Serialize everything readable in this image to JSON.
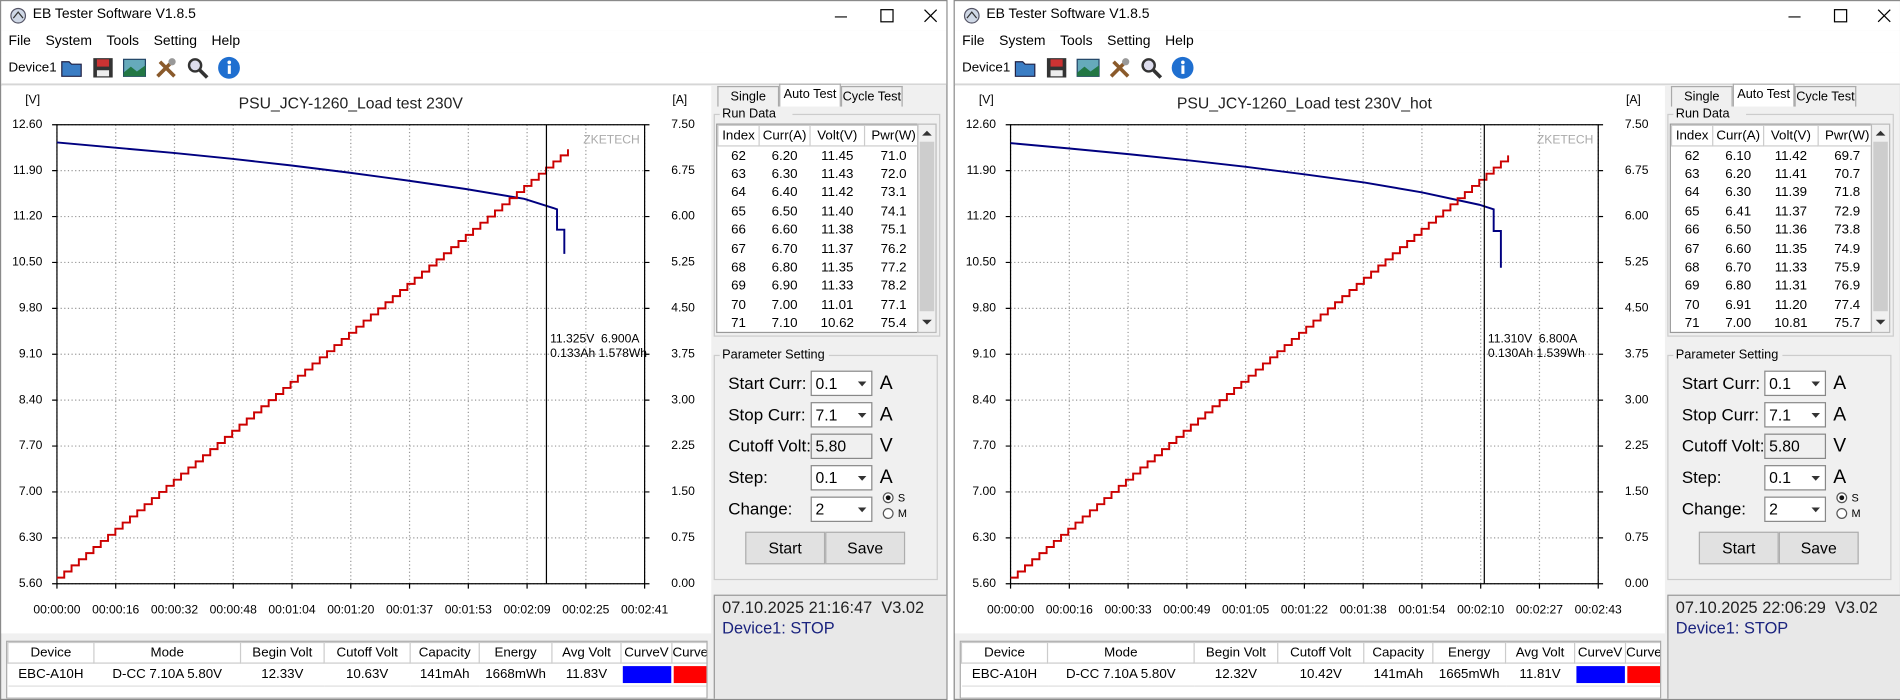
{
  "windows": [
    {
      "title": "EB Tester Software V1.8.5",
      "menu": [
        "File",
        "System",
        "Tools",
        "Setting",
        "Help"
      ],
      "device": "Device1",
      "chart_data": {
        "type": "line",
        "title": "PSU_JCY-1260_Load test 230V",
        "ylabel": "[V]",
        "y2label": "[A]",
        "xlim": [
          0,
          161
        ],
        "xticks": [
          {
            "value": 0,
            "label": "00:00:00"
          },
          {
            "value": 16.1,
            "label": "00:00:16"
          },
          {
            "value": 32.2,
            "label": "00:00:32"
          },
          {
            "value": 48.3,
            "label": "00:00:48"
          },
          {
            "value": 64.4,
            "label": "00:01:04"
          },
          {
            "value": 80.5,
            "label": "00:01:20"
          },
          {
            "value": 96.6,
            "label": "00:01:37"
          },
          {
            "value": 112.7,
            "label": "00:01:53"
          },
          {
            "value": 128.8,
            "label": "00:02:09"
          },
          {
            "value": 144.9,
            "label": "00:02:25"
          },
          {
            "value": 161,
            "label": "00:02:41"
          }
        ],
        "ylim": [
          5.6,
          12.6
        ],
        "yticks": [
          {
            "value": 5.6,
            "label": "5.60"
          },
          {
            "value": 6.3,
            "label": "6.30"
          },
          {
            "value": 7,
            "label": "7.00"
          },
          {
            "value": 7.7,
            "label": "7.70"
          },
          {
            "value": 8.4,
            "label": "8.40"
          },
          {
            "value": 9.1,
            "label": "9.10"
          },
          {
            "value": 9.8,
            "label": "9.80"
          },
          {
            "value": 10.5,
            "label": "10.50"
          },
          {
            "value": 11.2,
            "label": "11.20"
          },
          {
            "value": 11.9,
            "label": "11.90"
          },
          {
            "value": 12.6,
            "label": "12.60"
          }
        ],
        "y2lim": [
          0,
          7.5
        ],
        "y2ticks": [
          {
            "value": 0,
            "label": "0.00"
          },
          {
            "value": 0.75,
            "label": "0.75"
          },
          {
            "value": 1.5,
            "label": "1.50"
          },
          {
            "value": 2.25,
            "label": "2.25"
          },
          {
            "value": 3,
            "label": "3.00"
          },
          {
            "value": 3.75,
            "label": "3.75"
          },
          {
            "value": 4.5,
            "label": "4.50"
          },
          {
            "value": 5.25,
            "label": "5.25"
          },
          {
            "value": 6,
            "label": "6.00"
          },
          {
            "value": 6.75,
            "label": "6.75"
          },
          {
            "value": 7.5,
            "label": "7.50"
          }
        ],
        "grid": true,
        "watermark": "ZKETECH",
        "series": [
          {
            "color": "#000080",
            "x": [
              0,
              16,
              32,
              48,
              64,
              80,
              96,
              112,
              128,
              136,
              137,
              137,
              139,
              139
            ],
            "values": [
              12.33,
              12.25,
              12.17,
              12.08,
              11.98,
              11.87,
              11.75,
              11.62,
              11.47,
              11.33,
              11.31,
              11.0,
              11.0,
              10.63
            ]
          },
          {
            "color": "#cc0000",
            "axis": "y2",
            "step": true,
            "x": [
              0,
              2,
              4,
              6,
              8,
              10,
              12,
              14,
              16,
              18,
              20,
              22,
              24,
              26,
              28,
              30,
              32,
              34,
              36,
              38,
              40,
              42,
              44,
              46,
              48,
              50,
              52,
              54,
              56,
              58,
              60,
              62,
              64,
              66,
              68,
              70,
              72,
              74,
              76,
              78,
              80,
              82,
              84,
              86,
              88,
              90,
              92,
              94,
              96,
              98,
              100,
              102,
              104,
              106,
              108,
              110,
              112,
              114,
              116,
              118,
              120,
              122,
              124,
              126,
              128,
              130,
              132,
              134,
              136,
              138,
              140
            ],
            "values": [
              0.1,
              0.2,
              0.3,
              0.4,
              0.5,
              0.6,
              0.7,
              0.8,
              0.9,
              1,
              1.1,
              1.2,
              1.3,
              1.4,
              1.5,
              1.6,
              1.7,
              1.8,
              1.9,
              2,
              2.1,
              2.2,
              2.3,
              2.4,
              2.5,
              2.6,
              2.7,
              2.8,
              2.9,
              3,
              3.1,
              3.2,
              3.3,
              3.4,
              3.5,
              3.6,
              3.7,
              3.8,
              3.9,
              4,
              4.1,
              4.2,
              4.3,
              4.4,
              4.5,
              4.6,
              4.7,
              4.8,
              4.9,
              5,
              5.1,
              5.2,
              5.3,
              5.4,
              5.5,
              5.6,
              5.7,
              5.8,
              5.9,
              6,
              6.1,
              6.2,
              6.3,
              6.4,
              6.5,
              6.6,
              6.7,
              6.8,
              6.9,
              7,
              7.1
            ]
          }
        ],
        "cursor": {
          "x": 134.1,
          "labels": [
            "11.325V  6.900A",
            "0.133Ah 1.578Wh"
          ]
        }
      },
      "tabs": [
        "Single Test",
        "Auto Test",
        "Cycle Test"
      ],
      "active_tab": 1,
      "run_data": {
        "title": "Run Data",
        "columns": [
          "Index",
          "Curr(A)",
          "Volt(V)",
          "Pwr(W)"
        ],
        "rows": [
          [
            "62",
            "6.20",
            "11.45",
            "71.0"
          ],
          [
            "63",
            "6.30",
            "11.43",
            "72.0"
          ],
          [
            "64",
            "6.40",
            "11.42",
            "73.1"
          ],
          [
            "65",
            "6.50",
            "11.40",
            "74.1"
          ],
          [
            "66",
            "6.60",
            "11.38",
            "75.1"
          ],
          [
            "67",
            "6.70",
            "11.37",
            "76.2"
          ],
          [
            "68",
            "6.80",
            "11.35",
            "77.2"
          ],
          [
            "69",
            "6.90",
            "11.33",
            "78.2"
          ],
          [
            "70",
            "7.00",
            "11.01",
            "77.1"
          ],
          [
            "71",
            "7.10",
            "10.62",
            "75.4"
          ]
        ]
      },
      "parameter_setting": {
        "title": "Parameter Setting",
        "fields": [
          {
            "label": "Start Curr:",
            "value": "0.1",
            "unit": "A",
            "dropdown": true
          },
          {
            "label": "Stop Curr:",
            "value": "7.1",
            "unit": "A",
            "dropdown": true
          },
          {
            "label": "Cutoff Volt:",
            "value": "5.80",
            "unit": "V",
            "dropdown": false
          },
          {
            "label": "Step:",
            "value": "0.1",
            "unit": "A",
            "dropdown": true
          },
          {
            "label": "Change:",
            "value": "2",
            "dropdown": true
          }
        ],
        "radio": [
          "S",
          "M"
        ],
        "radio_selected": 0,
        "buttons": [
          "Start",
          "Save"
        ]
      },
      "status": [
        "07.10.2025 21:16:47  V3.02",
        "Device1: STOP"
      ],
      "summary": {
        "columns": [
          "Device",
          "Mode",
          "Begin Volt",
          "Cutoff Volt",
          "Capacity",
          "Energy",
          "Avg Volt",
          "CurveV",
          "CurveA"
        ],
        "row": [
          "EBC-A10H",
          "D-CC 7.10A 5.80V",
          "12.33V",
          "10.63V",
          "141mAh",
          "1668mWh",
          "11.83V"
        ],
        "curve_colors": [
          "#0000ff",
          "#ff0000"
        ]
      }
    },
    {
      "title": "EB Tester Software V1.8.5",
      "menu": [
        "File",
        "System",
        "Tools",
        "Setting",
        "Help"
      ],
      "device": "Device1",
      "chart_data": {
        "type": "line",
        "title": "PSU_JCY-1260_Load test 230V_hot",
        "ylabel": "[V]",
        "y2label": "[A]",
        "xlim": [
          0,
          163
        ],
        "xticks": [
          {
            "value": 0,
            "label": "00:00:00"
          },
          {
            "value": 16.3,
            "label": "00:00:16"
          },
          {
            "value": 32.6,
            "label": "00:00:33"
          },
          {
            "value": 48.9,
            "label": "00:00:49"
          },
          {
            "value": 65.2,
            "label": "00:01:05"
          },
          {
            "value": 81.5,
            "label": "00:01:22"
          },
          {
            "value": 97.8,
            "label": "00:01:38"
          },
          {
            "value": 114.1,
            "label": "00:01:54"
          },
          {
            "value": 130.4,
            "label": "00:02:10"
          },
          {
            "value": 146.7,
            "label": "00:02:27"
          },
          {
            "value": 163,
            "label": "00:02:43"
          }
        ],
        "ylim": [
          5.6,
          12.6
        ],
        "yticks": [
          {
            "value": 5.6,
            "label": "5.60"
          },
          {
            "value": 6.3,
            "label": "6.30"
          },
          {
            "value": 7,
            "label": "7.00"
          },
          {
            "value": 7.7,
            "label": "7.70"
          },
          {
            "value": 8.4,
            "label": "8.40"
          },
          {
            "value": 9.1,
            "label": "9.10"
          },
          {
            "value": 9.8,
            "label": "9.80"
          },
          {
            "value": 10.5,
            "label": "10.50"
          },
          {
            "value": 11.2,
            "label": "11.20"
          },
          {
            "value": 11.9,
            "label": "11.90"
          },
          {
            "value": 12.6,
            "label": "12.60"
          }
        ],
        "y2lim": [
          0,
          7.5
        ],
        "y2ticks": [
          {
            "value": 0,
            "label": "0.00"
          },
          {
            "value": 0.75,
            "label": "0.75"
          },
          {
            "value": 1.5,
            "label": "1.50"
          },
          {
            "value": 2.25,
            "label": "2.25"
          },
          {
            "value": 3,
            "label": "3.00"
          },
          {
            "value": 3.75,
            "label": "3.75"
          },
          {
            "value": 4.5,
            "label": "4.50"
          },
          {
            "value": 5.25,
            "label": "5.25"
          },
          {
            "value": 6,
            "label": "6.00"
          },
          {
            "value": 6.75,
            "label": "6.75"
          },
          {
            "value": 7.5,
            "label": "7.50"
          }
        ],
        "grid": true,
        "watermark": "ZKETECH",
        "series": [
          {
            "color": "#000080",
            "x": [
              0,
              16,
              33,
              49,
              65,
              82,
              98,
              114,
              130,
              134,
              134,
              136,
              136
            ],
            "values": [
              12.32,
              12.24,
              12.15,
              12.06,
              11.96,
              11.84,
              11.72,
              11.57,
              11.38,
              11.31,
              10.98,
              10.98,
              10.42
            ]
          },
          {
            "color": "#cc0000",
            "axis": "y2",
            "step": true,
            "x": [
              0,
              2,
              4,
              6,
              8,
              10,
              12,
              14,
              16,
              18,
              20,
              22,
              24,
              26,
              28,
              30,
              32,
              34,
              36,
              38,
              40,
              42,
              44,
              46,
              48,
              50,
              52,
              54,
              56,
              58,
              60,
              62,
              64,
              66,
              68,
              70,
              72,
              74,
              76,
              78,
              80,
              82,
              84,
              86,
              88,
              90,
              92,
              94,
              96,
              98,
              100,
              102,
              104,
              106,
              108,
              110,
              112,
              114,
              116,
              118,
              120,
              122,
              124,
              126,
              128,
              130,
              132,
              134,
              136,
              138
            ],
            "values": [
              0.1,
              0.2,
              0.3,
              0.4,
              0.5,
              0.6,
              0.7,
              0.8,
              0.9,
              1,
              1.1,
              1.2,
              1.3,
              1.4,
              1.5,
              1.6,
              1.7,
              1.8,
              1.9,
              2,
              2.1,
              2.2,
              2.3,
              2.4,
              2.5,
              2.6,
              2.7,
              2.8,
              2.9,
              3,
              3.1,
              3.2,
              3.3,
              3.4,
              3.5,
              3.6,
              3.7,
              3.8,
              3.9,
              4,
              4.1,
              4.2,
              4.3,
              4.4,
              4.5,
              4.6,
              4.7,
              4.8,
              4.9,
              5,
              5.1,
              5.2,
              5.3,
              5.4,
              5.5,
              5.6,
              5.7,
              5.8,
              5.9,
              6,
              6.1,
              6.2,
              6.3,
              6.4,
              6.5,
              6.6,
              6.7,
              6.8,
              6.9,
              7
            ]
          }
        ],
        "cursor": {
          "x": 131.4,
          "labels": [
            "11.310V  6.800A",
            "0.130Ah 1.539Wh"
          ]
        }
      },
      "tabs": [
        "Single Test",
        "Auto Test",
        "Cycle Test"
      ],
      "active_tab": 1,
      "run_data": {
        "title": "Run Data",
        "columns": [
          "Index",
          "Curr(A)",
          "Volt(V)",
          "Pwr(W)"
        ],
        "rows": [
          [
            "62",
            "6.10",
            "11.42",
            "69.7"
          ],
          [
            "63",
            "6.20",
            "11.41",
            "70.7"
          ],
          [
            "64",
            "6.30",
            "11.39",
            "71.8"
          ],
          [
            "65",
            "6.41",
            "11.37",
            "72.9"
          ],
          [
            "66",
            "6.50",
            "11.36",
            "73.8"
          ],
          [
            "67",
            "6.60",
            "11.35",
            "74.9"
          ],
          [
            "68",
            "6.70",
            "11.33",
            "75.9"
          ],
          [
            "69",
            "6.80",
            "11.31",
            "76.9"
          ],
          [
            "70",
            "6.91",
            "11.20",
            "77.4"
          ],
          [
            "71",
            "7.00",
            "10.81",
            "75.7"
          ]
        ]
      },
      "parameter_setting": {
        "title": "Parameter Setting",
        "fields": [
          {
            "label": "Start Curr:",
            "value": "0.1",
            "unit": "A",
            "dropdown": true
          },
          {
            "label": "Stop Curr:",
            "value": "7.1",
            "unit": "A",
            "dropdown": true
          },
          {
            "label": "Cutoff Volt:",
            "value": "5.80",
            "unit": "V",
            "dropdown": false
          },
          {
            "label": "Step:",
            "value": "0.1",
            "unit": "A",
            "dropdown": true
          },
          {
            "label": "Change:",
            "value": "2",
            "dropdown": true
          }
        ],
        "radio": [
          "S",
          "M"
        ],
        "radio_selected": 0,
        "buttons": [
          "Start",
          "Save"
        ]
      },
      "status": [
        "07.10.2025 22:06:29  V3.02",
        "Device1: STOP"
      ],
      "summary": {
        "columns": [
          "Device",
          "Mode",
          "Begin Volt",
          "Cutoff Volt",
          "Capacity",
          "Energy",
          "Avg Volt",
          "CurveV",
          "CurveA"
        ],
        "row": [
          "EBC-A10H",
          "D-CC 7.10A 5.80V",
          "12.32V",
          "10.42V",
          "141mAh",
          "1665mWh",
          "11.81V"
        ],
        "curve_colors": [
          "#0000ff",
          "#ff0000"
        ]
      }
    }
  ]
}
